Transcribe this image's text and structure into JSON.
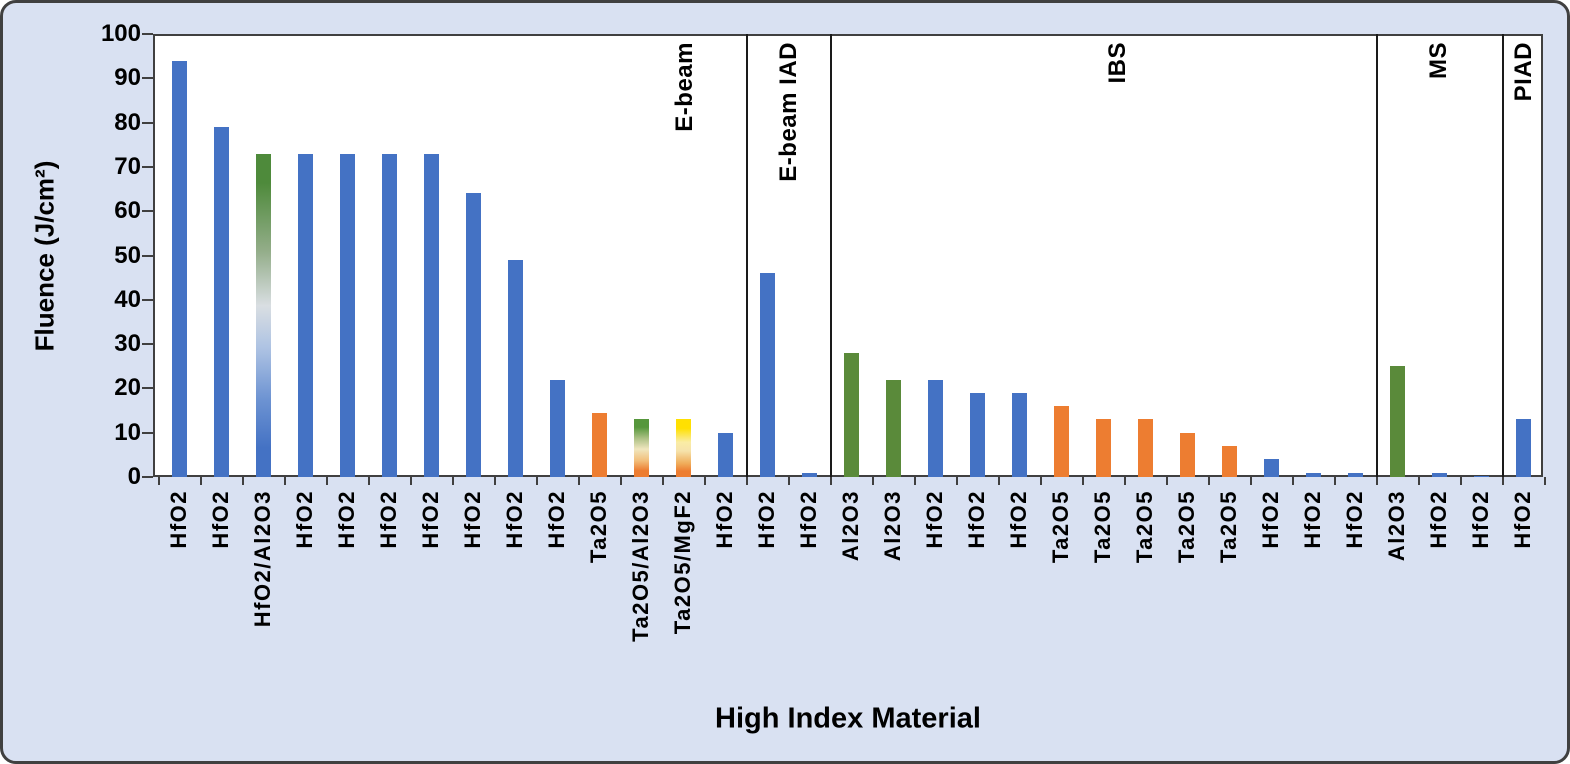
{
  "figure": {
    "background_color": "#D9E1F2",
    "border_color": "#404040",
    "plot_background": "#ffffff"
  },
  "chart_data": {
    "type": "bar",
    "title": "",
    "xlabel": "High Index Material",
    "ylabel": "Fluence (J/cm²)",
    "ylim": [
      0,
      100
    ],
    "yticks": [
      0,
      10,
      20,
      30,
      40,
      50,
      60,
      70,
      80,
      90,
      100
    ],
    "grid": false,
    "legend": "none",
    "colors": {
      "blue": "#4472C4",
      "orange": "#ED7D31",
      "green": "#5A8A3A"
    },
    "bars": [
      {
        "label": "HfO2",
        "value": 94,
        "color": "blue"
      },
      {
        "label": "HfO2",
        "value": 79,
        "color": "blue"
      },
      {
        "label": "HfO2/Al2O3",
        "value": 73,
        "color": "grad-green-blue"
      },
      {
        "label": "HfO2",
        "value": 73,
        "color": "blue"
      },
      {
        "label": "HfO2",
        "value": 73,
        "color": "blue"
      },
      {
        "label": "HfO2",
        "value": 73,
        "color": "blue"
      },
      {
        "label": "HfO2",
        "value": 73,
        "color": "blue"
      },
      {
        "label": "HfO2",
        "value": 64,
        "color": "blue"
      },
      {
        "label": "HfO2",
        "value": 49,
        "color": "blue"
      },
      {
        "label": "HfO2",
        "value": 22,
        "color": "blue"
      },
      {
        "label": "Ta2O5",
        "value": 14.5,
        "color": "orange"
      },
      {
        "label": "Ta2O5/Al2O3",
        "value": 13,
        "color": "grad-green-orange"
      },
      {
        "label": "Ta2O5/MgF2",
        "value": 13,
        "color": "grad-yellow-orange"
      },
      {
        "label": "HfO2",
        "value": 10,
        "color": "blue"
      },
      {
        "label": "HfO2",
        "value": 46,
        "color": "blue"
      },
      {
        "label": "HfO2",
        "value": 1,
        "color": "blue"
      },
      {
        "label": "Al2O3",
        "value": 28,
        "color": "green"
      },
      {
        "label": "Al2O3",
        "value": 22,
        "color": "green"
      },
      {
        "label": "HfO2",
        "value": 22,
        "color": "blue"
      },
      {
        "label": "HfO2",
        "value": 19,
        "color": "blue"
      },
      {
        "label": "HfO2",
        "value": 19,
        "color": "blue"
      },
      {
        "label": "Ta2O5",
        "value": 16,
        "color": "orange"
      },
      {
        "label": "Ta2O5",
        "value": 13,
        "color": "orange"
      },
      {
        "label": "Ta2O5",
        "value": 13,
        "color": "orange"
      },
      {
        "label": "Ta2O5",
        "value": 10,
        "color": "orange"
      },
      {
        "label": "Ta2O5",
        "value": 7,
        "color": "orange"
      },
      {
        "label": "HfO2",
        "value": 4,
        "color": "blue"
      },
      {
        "label": "HfO2",
        "value": 1,
        "color": "blue"
      },
      {
        "label": "HfO2",
        "value": 1,
        "color": "blue"
      },
      {
        "label": "Al2O3",
        "value": 25,
        "color": "green"
      },
      {
        "label": "HfO2",
        "value": 1,
        "color": "blue"
      },
      {
        "label": "HfO2",
        "value": 0.3,
        "color": "blue"
      },
      {
        "label": "HfO2",
        "value": 13,
        "color": "blue"
      }
    ],
    "sections": [
      {
        "label": "E-beam",
        "bar_start": 1,
        "bar_end": 14
      },
      {
        "label": "E-beam IAD",
        "bar_start": 15,
        "bar_end": 16
      },
      {
        "label": "IBS",
        "bar_start": 17,
        "bar_end": 29
      },
      {
        "label": "MS",
        "bar_start": 30,
        "bar_end": 32
      },
      {
        "label": "PIAD",
        "bar_start": 33,
        "bar_end": 33
      }
    ],
    "dividers_after_bar": [
      14,
      16,
      29,
      32
    ]
  }
}
